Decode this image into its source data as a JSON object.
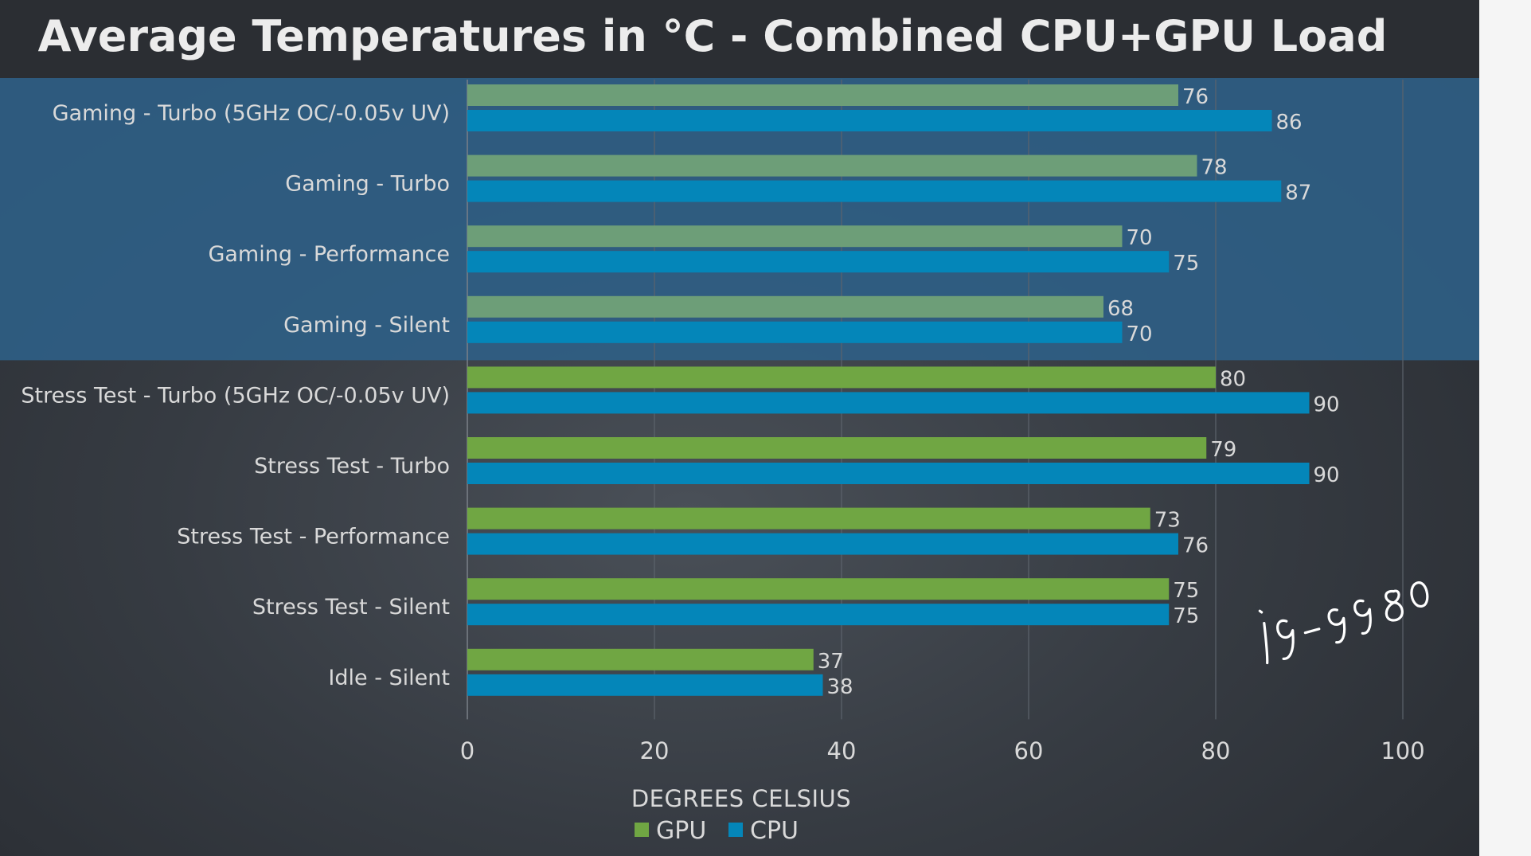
{
  "chart_data": {
    "type": "bar",
    "orientation": "horizontal",
    "title": "Average Temperatures in °C - Combined CPU+GPU Load",
    "xlabel": "DEGREES CELSIUS",
    "ylabel": "",
    "xlim": [
      0,
      100
    ],
    "xticks": [
      0,
      20,
      40,
      60,
      80,
      100
    ],
    "grid": true,
    "legend_position": "bottom",
    "categories": [
      "Gaming - Turbo (5GHz OC/-0.05v UV)",
      "Gaming - Turbo",
      "Gaming - Performance",
      "Gaming - Silent",
      "Stress Test - Turbo (5GHz OC/-0.05v UV)",
      "Stress Test - Turbo",
      "Stress Test - Performance",
      "Stress Test - Silent",
      "Idle - Silent"
    ],
    "series": [
      {
        "name": "GPU",
        "color": "#70a643",
        "highlight_color": "#6d9e78",
        "values": [
          76,
          78,
          70,
          68,
          80,
          79,
          73,
          75,
          37
        ]
      },
      {
        "name": "CPU",
        "color": "#0486b9",
        "highlight_color": "#0486b9",
        "values": [
          86,
          87,
          75,
          70,
          90,
          90,
          76,
          75,
          38
        ]
      }
    ],
    "highlighted_categories": [
      0,
      1,
      2,
      3
    ],
    "highlight_band_color": "#2f5f86",
    "annotation": "i9-9980"
  }
}
